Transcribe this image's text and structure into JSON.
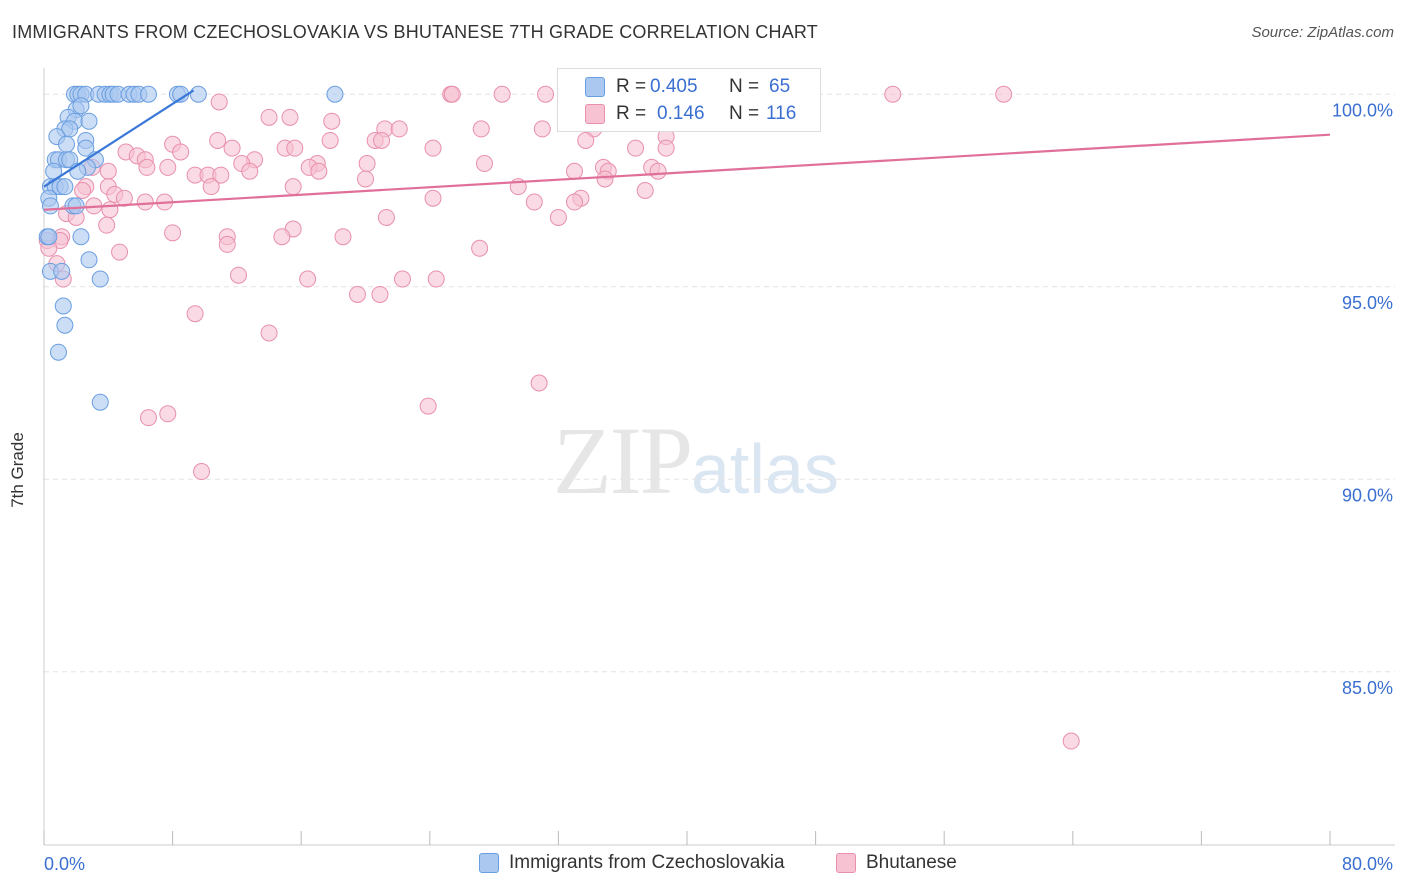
{
  "title": "IMMIGRANTS FROM CZECHOSLOVAKIA VS BHUTANESE 7TH GRADE CORRELATION CHART",
  "source": "Source: ZipAtlas.com",
  "watermark": {
    "zip": "ZIP",
    "atlas": "atlas"
  },
  "legend_stats": [
    {
      "r_label": "R =",
      "r_value": "0.405",
      "n_label": "N =",
      "n_value": "65"
    },
    {
      "r_label": "R =",
      "r_value": "0.146",
      "n_label": "N =",
      "n_value": "116"
    }
  ],
  "legend_bottom": [
    "Immigrants from Czechoslovakia",
    "Bhutanese"
  ],
  "colors": {
    "blue_fill": "#aac8f0",
    "blue_stroke": "#6a9ee0",
    "blue_line": "#3a78d8",
    "pink_fill": "#f7c2d2",
    "pink_stroke": "#e890ac",
    "pink_line": "#e0709a",
    "tick_label": "#3a6fd1",
    "grid": "#e4e4e4"
  },
  "chart_data": {
    "type": "scatter",
    "title": "IMMIGRANTS FROM CZECHOSLOVAKIA VS BHUTANESE 7TH GRADE CORRELATION CHART",
    "xlabel": "",
    "ylabel": "7th Grade",
    "xlim": [
      0,
      80
    ],
    "ylim": [
      80.5,
      100.5
    ],
    "x_tick_labels": [
      "0.0%",
      "80.0%"
    ],
    "y_ticks": [
      85,
      90,
      95,
      100
    ],
    "y_tick_labels": [
      "85.0%",
      "90.0%",
      "95.0%",
      "100.0%"
    ],
    "grid": "horizontal dashed",
    "legend": "bottom",
    "series": [
      {
        "name": "Immigrants from Czechoslovakia",
        "r": 0.405,
        "n": 65,
        "trend": {
          "x0": 0,
          "y0": 97.6,
          "x1": 9.3,
          "y1": 100.1
        },
        "points": [
          [
            1.9,
            100
          ],
          [
            2.1,
            100
          ],
          [
            2.3,
            100
          ],
          [
            2.6,
            100
          ],
          [
            3.4,
            100
          ],
          [
            3.8,
            100
          ],
          [
            4.1,
            100
          ],
          [
            4.3,
            100
          ],
          [
            4.6,
            100
          ],
          [
            5.3,
            100
          ],
          [
            5.6,
            100
          ],
          [
            5.9,
            100
          ],
          [
            6.5,
            100
          ],
          [
            8.3,
            100
          ],
          [
            8.5,
            100
          ],
          [
            9.6,
            100
          ],
          [
            18.1,
            100
          ],
          [
            2.0,
            99.6
          ],
          [
            2.3,
            99.7
          ],
          [
            1.5,
            99.4
          ],
          [
            1.9,
            99.3
          ],
          [
            2.8,
            99.3
          ],
          [
            1.3,
            99.1
          ],
          [
            1.6,
            99.1
          ],
          [
            0.8,
            98.9
          ],
          [
            1.4,
            98.7
          ],
          [
            2.6,
            98.8
          ],
          [
            2.6,
            98.6
          ],
          [
            0.7,
            98.3
          ],
          [
            0.9,
            98.3
          ],
          [
            1.4,
            98.3
          ],
          [
            1.6,
            98.3
          ],
          [
            3.2,
            98.3
          ],
          [
            2.7,
            98.1
          ],
          [
            0.6,
            98.0
          ],
          [
            2.1,
            98.0
          ],
          [
            0.4,
            97.6
          ],
          [
            0.7,
            97.6
          ],
          [
            1.0,
            97.6
          ],
          [
            1.3,
            97.6
          ],
          [
            0.3,
            97.3
          ],
          [
            0.4,
            97.1
          ],
          [
            1.8,
            97.1
          ],
          [
            2.0,
            97.1
          ],
          [
            0.2,
            96.3
          ],
          [
            0.3,
            96.3
          ],
          [
            2.3,
            96.3
          ],
          [
            2.8,
            95.7
          ],
          [
            0.4,
            95.4
          ],
          [
            1.1,
            95.4
          ],
          [
            3.5,
            95.2
          ],
          [
            1.2,
            94.5
          ],
          [
            1.3,
            94.0
          ],
          [
            0.9,
            93.3
          ],
          [
            3.5,
            92.0
          ]
        ]
      },
      {
        "name": "Bhutanese",
        "r": 0.146,
        "n": 116,
        "trend": {
          "x0": 0,
          "y0": 97.0,
          "x1": 80,
          "y1": 98.95
        },
        "points": [
          [
            25.3,
            100
          ],
          [
            25.4,
            100
          ],
          [
            28.5,
            100
          ],
          [
            31.2,
            100
          ],
          [
            36.9,
            100
          ],
          [
            40.2,
            100
          ],
          [
            44.4,
            100
          ],
          [
            52.8,
            100
          ],
          [
            59.7,
            100
          ],
          [
            10.9,
            99.8
          ],
          [
            32.6,
            99.8
          ],
          [
            38.4,
            99.5
          ],
          [
            14.0,
            99.4
          ],
          [
            15.3,
            99.4
          ],
          [
            17.9,
            99.3
          ],
          [
            21.2,
            99.1
          ],
          [
            22.1,
            99.1
          ],
          [
            27.2,
            99.1
          ],
          [
            31.0,
            99.1
          ],
          [
            34.2,
            99.1
          ],
          [
            38.7,
            98.9
          ],
          [
            10.8,
            98.8
          ],
          [
            17.8,
            98.8
          ],
          [
            20.6,
            98.8
          ],
          [
            21.0,
            98.8
          ],
          [
            33.7,
            98.8
          ],
          [
            8.0,
            98.7
          ],
          [
            11.7,
            98.6
          ],
          [
            15.0,
            98.6
          ],
          [
            15.6,
            98.6
          ],
          [
            24.2,
            98.6
          ],
          [
            36.8,
            98.6
          ],
          [
            38.7,
            98.6
          ],
          [
            5.1,
            98.5
          ],
          [
            8.5,
            98.5
          ],
          [
            5.8,
            98.4
          ],
          [
            6.3,
            98.3
          ],
          [
            13.1,
            98.3
          ],
          [
            17.0,
            98.2
          ],
          [
            20.1,
            98.2
          ],
          [
            27.4,
            98.2
          ],
          [
            12.3,
            98.2
          ],
          [
            3.0,
            98.1
          ],
          [
            6.4,
            98.1
          ],
          [
            7.7,
            98.1
          ],
          [
            16.5,
            98.1
          ],
          [
            34.8,
            98.1
          ],
          [
            37.8,
            98.1
          ],
          [
            4.0,
            98.0
          ],
          [
            12.8,
            98.0
          ],
          [
            17.1,
            98.0
          ],
          [
            33.0,
            98.0
          ],
          [
            35.1,
            98.0
          ],
          [
            38.2,
            98.0
          ],
          [
            9.4,
            97.9
          ],
          [
            10.2,
            97.9
          ],
          [
            11.0,
            97.9
          ],
          [
            20.0,
            97.8
          ],
          [
            34.9,
            97.8
          ],
          [
            2.6,
            97.6
          ],
          [
            4.0,
            97.6
          ],
          [
            10.4,
            97.6
          ],
          [
            15.5,
            97.6
          ],
          [
            29.5,
            97.6
          ],
          [
            2.4,
            97.5
          ],
          [
            37.4,
            97.5
          ],
          [
            4.4,
            97.4
          ],
          [
            5.0,
            97.3
          ],
          [
            24.2,
            97.3
          ],
          [
            33.4,
            97.3
          ],
          [
            6.3,
            97.2
          ],
          [
            7.5,
            97.2
          ],
          [
            30.5,
            97.2
          ],
          [
            33.0,
            97.2
          ],
          [
            3.1,
            97.1
          ],
          [
            4.1,
            97.0
          ],
          [
            1.4,
            96.9
          ],
          [
            2.0,
            96.8
          ],
          [
            21.3,
            96.8
          ],
          [
            32.0,
            96.8
          ],
          [
            3.9,
            96.6
          ],
          [
            15.5,
            96.5
          ],
          [
            8.0,
            96.4
          ],
          [
            11.4,
            96.3
          ],
          [
            1.1,
            96.3
          ],
          [
            18.6,
            96.3
          ],
          [
            14.8,
            96.3
          ],
          [
            0.2,
            96.2
          ],
          [
            1.0,
            96.2
          ],
          [
            11.4,
            96.1
          ],
          [
            0.3,
            96.0
          ],
          [
            27.1,
            96.0
          ],
          [
            4.7,
            95.9
          ],
          [
            0.8,
            95.6
          ],
          [
            12.1,
            95.3
          ],
          [
            16.4,
            95.2
          ],
          [
            22.3,
            95.2
          ],
          [
            24.4,
            95.2
          ],
          [
            1.2,
            95.2
          ],
          [
            19.5,
            94.8
          ],
          [
            20.9,
            94.8
          ],
          [
            9.4,
            94.3
          ],
          [
            14.0,
            93.8
          ],
          [
            30.8,
            92.5
          ],
          [
            23.9,
            91.9
          ],
          [
            6.5,
            91.6
          ],
          [
            7.7,
            91.7
          ],
          [
            9.8,
            90.2
          ],
          [
            63.9,
            83.2
          ]
        ]
      }
    ]
  }
}
